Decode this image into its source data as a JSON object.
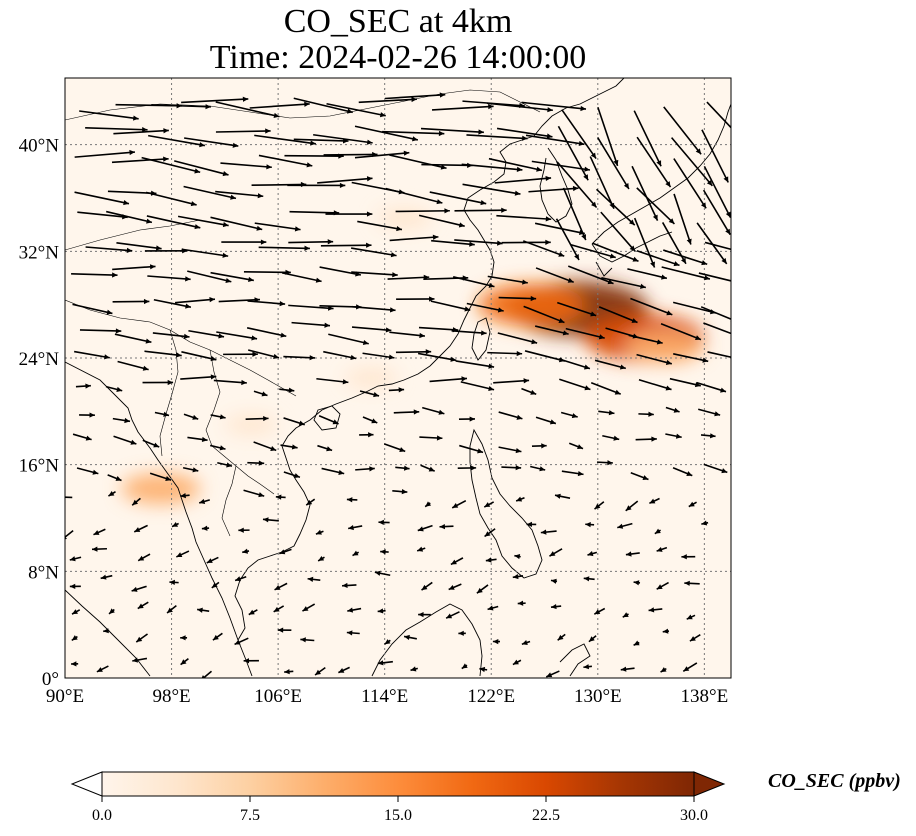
{
  "title": {
    "line1": "CO_SEC at 4km",
    "line2": "Time: 2024-02-26 14:00:00"
  },
  "map": {
    "projection": "PlateCarree",
    "lon_range": [
      90,
      140
    ],
    "lat_range": [
      0,
      45
    ],
    "gridlines": "dotted",
    "coastlines": true,
    "borders": true,
    "lon_ticks": [
      {
        "value": 90,
        "label": "90°E"
      },
      {
        "value": 98,
        "label": "98°E"
      },
      {
        "value": 106,
        "label": "106°E"
      },
      {
        "value": 114,
        "label": "114°E"
      },
      {
        "value": 122,
        "label": "122°E"
      },
      {
        "value": 130,
        "label": "130°E"
      },
      {
        "value": 138,
        "label": "138°E"
      }
    ],
    "lat_ticks": [
      {
        "value": 0,
        "label": "0°"
      },
      {
        "value": 8,
        "label": "8°N"
      },
      {
        "value": 16,
        "label": "16°N"
      },
      {
        "value": 24,
        "label": "24°N"
      },
      {
        "value": 32,
        "label": "32°N"
      },
      {
        "value": 40,
        "label": "40°N"
      }
    ],
    "plumes": [
      {
        "lon": 128.5,
        "lat": 27.7,
        "value": 30
      },
      {
        "lon": 133.5,
        "lat": 25.5,
        "value": 24
      },
      {
        "lon": 125.0,
        "lat": 28.0,
        "value": 20
      },
      {
        "lon": 135.0,
        "lat": 24.8,
        "value": 12
      },
      {
        "lon": 115.5,
        "lat": 34.5,
        "value": 5
      },
      {
        "lon": 97.2,
        "lat": 14.2,
        "value": 12
      },
      {
        "lon": 113.0,
        "lat": 22.5,
        "value": 4
      },
      {
        "lon": 104.0,
        "lat": 19.0,
        "value": 4
      }
    ]
  },
  "colorbar": {
    "label": "CO_SEC (ppbv)",
    "min": 0.0,
    "max": 30.0,
    "extend": "both",
    "colors": [
      "#fff5eb",
      "#fee6ce",
      "#fdd0a2",
      "#fdae6b",
      "#fd8d3c",
      "#f16913",
      "#d94801",
      "#a63603",
      "#7f2704"
    ],
    "ticks": [
      "0.0",
      "7.5",
      "15.0",
      "22.5",
      "30.0"
    ]
  }
}
